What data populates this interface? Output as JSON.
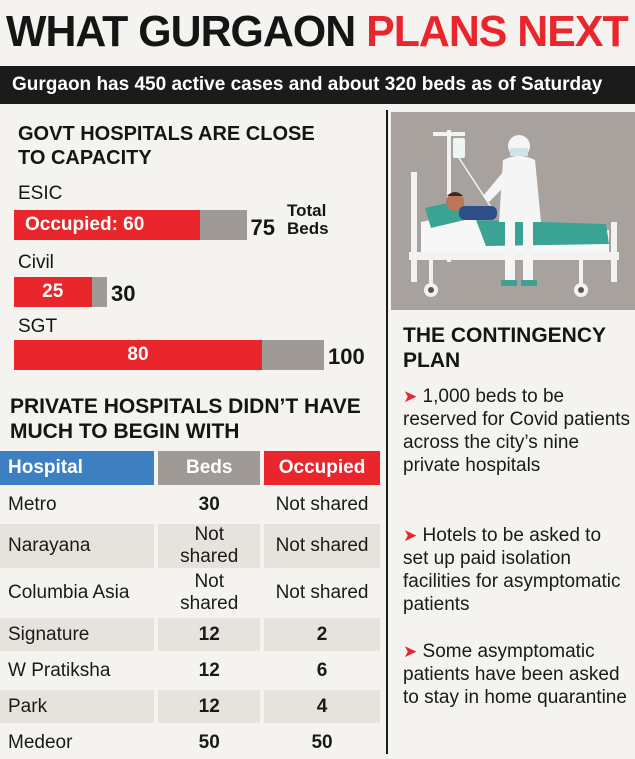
{
  "headline": {
    "part1": "WHAT GURGAON",
    "part2": "PLANS NEXT"
  },
  "subheading": "Gurgaon has 450 active cases and about 320 beds as of Saturday",
  "govt": {
    "title_line1": "GOVT HOSPITALS ARE CLOSE",
    "title_line2": "TO CAPACITY",
    "total_beds_line1": "Total",
    "total_beds_line2": "Beds",
    "hospitals": [
      {
        "name": "ESIC",
        "occupied_label": "Occupied: 60",
        "occupied": 60,
        "total": 75,
        "total_label": "75"
      },
      {
        "name": "Civil",
        "occupied_label": "25",
        "occupied": 25,
        "total": 30,
        "total_label": "30"
      },
      {
        "name": "SGT",
        "occupied_label": "80",
        "occupied": 80,
        "total": 100,
        "total_label": "100"
      }
    ]
  },
  "private": {
    "title_line1": "PRIVATE HOSPITALS DIDN’T HAVE",
    "title_line2": "MUCH TO BEGIN WITH",
    "headers": {
      "hospital": "Hospital",
      "beds": "Beds",
      "occupied": "Occupied"
    },
    "rows": [
      {
        "hospital": "Metro",
        "beds": "30",
        "occupied": "Not shared"
      },
      {
        "hospital": "Narayana",
        "beds": "Not shared",
        "occupied": "Not shared"
      },
      {
        "hospital": "Columbia Asia",
        "beds": "Not shared",
        "occupied": "Not shared"
      },
      {
        "hospital": "Signature",
        "beds": "12",
        "occupied": "2"
      },
      {
        "hospital": "W Pratiksha",
        "beds": "12",
        "occupied": "6"
      },
      {
        "hospital": "Park",
        "beds": "12",
        "occupied": "4"
      },
      {
        "hospital": "Medeor",
        "beds": "50",
        "occupied": "50"
      }
    ]
  },
  "contingency": {
    "title_line1": "THE CONTINGENCY",
    "title_line2": "PLAN",
    "bullets": [
      "1,000 beds to be reserved for Covid patients across the city’s nine private hospitals",
      "Hotels to be asked to set up paid isolation facilities for asymptomatic patients",
      "Some asymptomatic patients have been asked to stay in home quarantine"
    ]
  },
  "colors": {
    "red": "#e8262b",
    "grey": "#9f9a96",
    "blue": "#3d7fc1",
    "dark": "#1b1b1b"
  },
  "illustration": {
    "icon": "hospital-bed-patient-doctor-illustration"
  }
}
